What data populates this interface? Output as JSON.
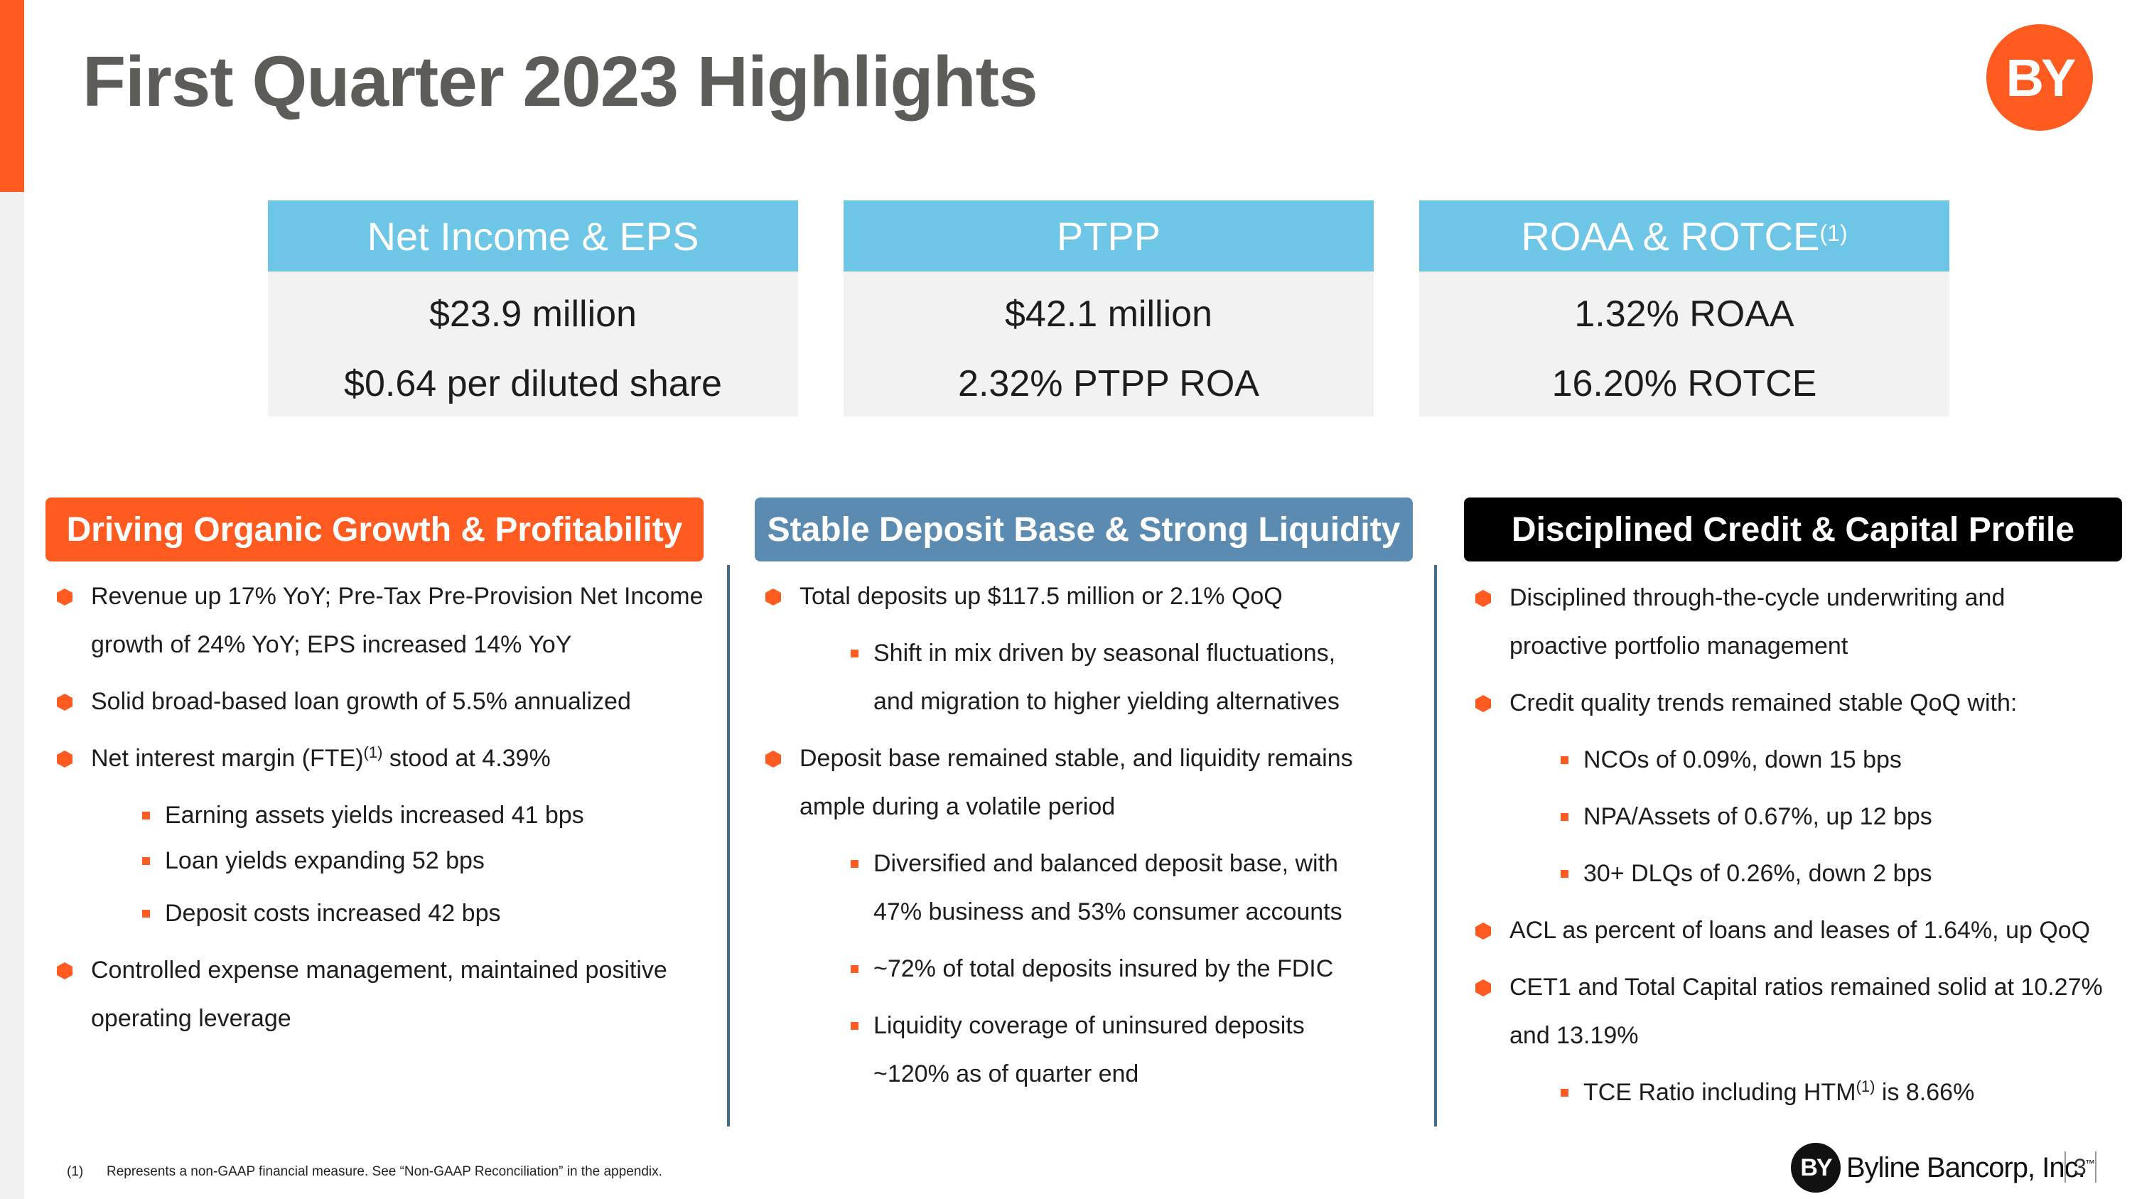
{
  "title": "First Quarter 2023 Highlights",
  "logo_text": "BY",
  "kpis": [
    {
      "title": "Net Income & EPS",
      "title_sup": "",
      "line1": "$23.9 million",
      "line2": "$0.64 per diluted share"
    },
    {
      "title": "PTPP",
      "title_sup": "",
      "line1": "$42.1 million",
      "line2": "2.32% PTPP ROA"
    },
    {
      "title": "ROAA & ROTCE",
      "title_sup": "(1)",
      "line1": "1.32% ROAA",
      "line2": "16.20% ROTCE"
    }
  ],
  "sections": [
    {
      "title": "Driving Organic Growth & Profitability",
      "color": "#ff5a1f",
      "bullets": [
        {
          "text": "Revenue up 17% YoY; Pre-Tax Pre-Provision Net Income",
          "cont": "growth of 24% YoY; EPS increased 14% YoY"
        },
        {
          "text": "Solid broad-based loan growth of 5.5% annualized"
        },
        {
          "text": "Net interest margin (FTE)",
          "sup": "(1)",
          "text_after": " stood at 4.39%"
        },
        {
          "text": "Earning assets yields increased 41 bps"
        },
        {
          "text": "Loan yields expanding 52 bps"
        },
        {
          "text": "Deposit costs increased 42 bps"
        },
        {
          "text": "Controlled expense management, maintained positive",
          "cont": "operating leverage"
        }
      ]
    },
    {
      "title": "Stable Deposit Base & Strong Liquidity",
      "color": "#5b8bb0",
      "bullets": [
        {
          "text": "Total deposits up $117.5 million or 2.1% QoQ"
        },
        {
          "text": "Shift in mix driven by seasonal fluctuations,",
          "cont": "and migration to higher yielding alternatives"
        },
        {
          "text": "Deposit base remained stable, and liquidity remains",
          "cont": "ample during a volatile period"
        },
        {
          "text": "Diversified and balanced deposit base, with",
          "cont": "47% business and 53% consumer accounts"
        },
        {
          "text": "~72% of total deposits insured by the FDIC"
        },
        {
          "text": "Liquidity coverage of uninsured deposits",
          "cont": "~120% as of quarter end"
        }
      ]
    },
    {
      "title": "Disciplined Credit & Capital Profile",
      "color": "#000000",
      "bullets": [
        {
          "text": "Disciplined through-the-cycle underwriting and",
          "cont": "proactive portfolio management"
        },
        {
          "text": "Credit quality trends remained stable QoQ with:"
        },
        {
          "text": "NCOs of 0.09%, down 15 bps"
        },
        {
          "text": "NPA/Assets of 0.67%, up 12 bps"
        },
        {
          "text": "30+ DLQs of 0.26%, down 2 bps"
        },
        {
          "text": "ACL as percent of loans and leases of 1.64%, up QoQ"
        },
        {
          "text": "CET1 and Total Capital ratios remained solid at 10.27%",
          "cont": "and 13.19%"
        },
        {
          "text": "TCE Ratio including HTM",
          "sup": "(1)",
          "text_after": " is 8.66%"
        }
      ]
    }
  ],
  "footnote": {
    "num": "(1)",
    "text": "Represents a non-GAAP financial measure.  See “Non-GAAP Reconciliation” in the appendix."
  },
  "footer": {
    "logo_text": "BY",
    "brand": "Byline Bancorp, Inc.",
    "tm": "™",
    "page": "3"
  },
  "colors": {
    "accent": "#ff5a1f",
    "kpi_header": "#6ec6e6",
    "kpi_body": "#f2f2f2",
    "divider": "#3e6f8c"
  }
}
